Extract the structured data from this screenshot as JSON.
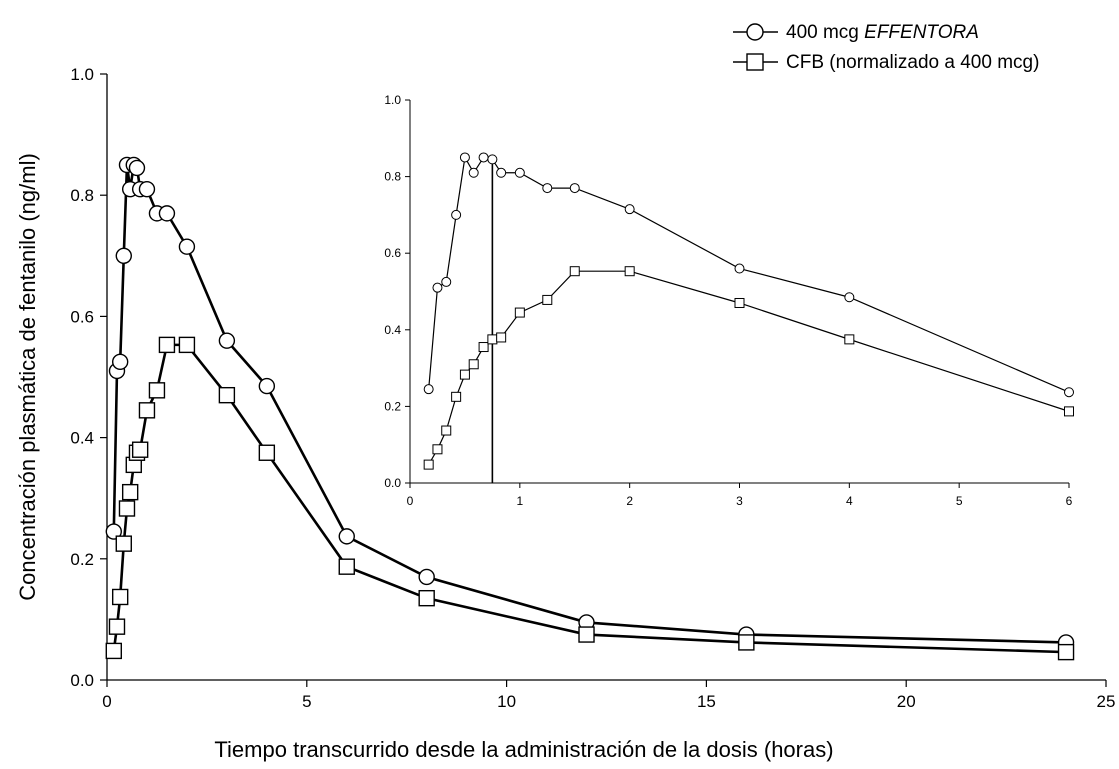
{
  "chart_data": [
    {
      "type": "line",
      "title": "",
      "xlabel": "Tiempo transcurrido desde la administración de la dosis (horas)",
      "ylabel": "Concentración plasmática de fentanilo (ng/ml)",
      "xlim": [
        0,
        25
      ],
      "ylim": [
        0,
        1.0
      ],
      "x_ticks": [
        "0",
        "5",
        "10",
        "15",
        "20",
        "25"
      ],
      "y_ticks": [
        "0.0",
        "0.2",
        "0.4",
        "0.6",
        "0.8",
        "1.0"
      ],
      "legend_position": "top-right",
      "grid": false,
      "series": [
        {
          "name": "400 mcg",
          "name_italic": "EFFENTORA",
          "marker": "circle",
          "x": [
            0.17,
            0.25,
            0.33,
            0.42,
            0.5,
            0.58,
            0.67,
            0.75,
            0.83,
            1.0,
            1.25,
            1.5,
            2,
            3,
            4,
            6,
            8,
            12,
            16,
            24
          ],
          "y": [
            0.245,
            0.51,
            0.525,
            0.7,
            0.85,
            0.81,
            0.85,
            0.845,
            0.81,
            0.81,
            0.77,
            0.77,
            0.715,
            0.56,
            0.485,
            0.237,
            0.17,
            0.095,
            0.075,
            0.062
          ]
        },
        {
          "name": "CFB (normalizado a 400 mcg)",
          "marker": "square",
          "x": [
            0.17,
            0.25,
            0.33,
            0.42,
            0.5,
            0.58,
            0.67,
            0.75,
            0.83,
            1.0,
            1.25,
            1.5,
            2,
            3,
            4,
            6,
            8,
            12,
            16,
            24
          ],
          "y": [
            0.048,
            0.088,
            0.137,
            0.225,
            0.283,
            0.31,
            0.355,
            0.375,
            0.38,
            0.445,
            0.478,
            0.553,
            0.553,
            0.47,
            0.375,
            0.187,
            0.135,
            0.075,
            0.062,
            0.046
          ]
        }
      ]
    },
    {
      "type": "line",
      "title": "",
      "xlim": [
        0,
        6
      ],
      "ylim": [
        0,
        1.0
      ],
      "x_ticks": [
        "0",
        "1",
        "2",
        "3",
        "4",
        "5",
        "6"
      ],
      "y_ticks": [
        "0.0",
        "0.2",
        "0.4",
        "0.6",
        "0.8",
        "1.0"
      ],
      "reference_line_x": 0.75,
      "series": [
        {
          "name": "400 mcg EFFENTORA",
          "marker": "circle",
          "x": [
            0.17,
            0.25,
            0.33,
            0.42,
            0.5,
            0.58,
            0.67,
            0.75,
            0.83,
            1.0,
            1.25,
            1.5,
            2,
            3,
            4,
            6
          ],
          "y": [
            0.245,
            0.51,
            0.525,
            0.7,
            0.85,
            0.81,
            0.85,
            0.845,
            0.81,
            0.81,
            0.77,
            0.77,
            0.715,
            0.56,
            0.485,
            0.237
          ]
        },
        {
          "name": "CFB (normalizado a 400 mcg)",
          "marker": "square",
          "x": [
            0.17,
            0.25,
            0.33,
            0.42,
            0.5,
            0.58,
            0.67,
            0.75,
            0.83,
            1.0,
            1.25,
            1.5,
            2,
            3,
            4,
            6
          ],
          "y": [
            0.048,
            0.088,
            0.137,
            0.225,
            0.283,
            0.31,
            0.355,
            0.375,
            0.38,
            0.445,
            0.478,
            0.553,
            0.553,
            0.47,
            0.375,
            0.187
          ]
        }
      ]
    }
  ]
}
